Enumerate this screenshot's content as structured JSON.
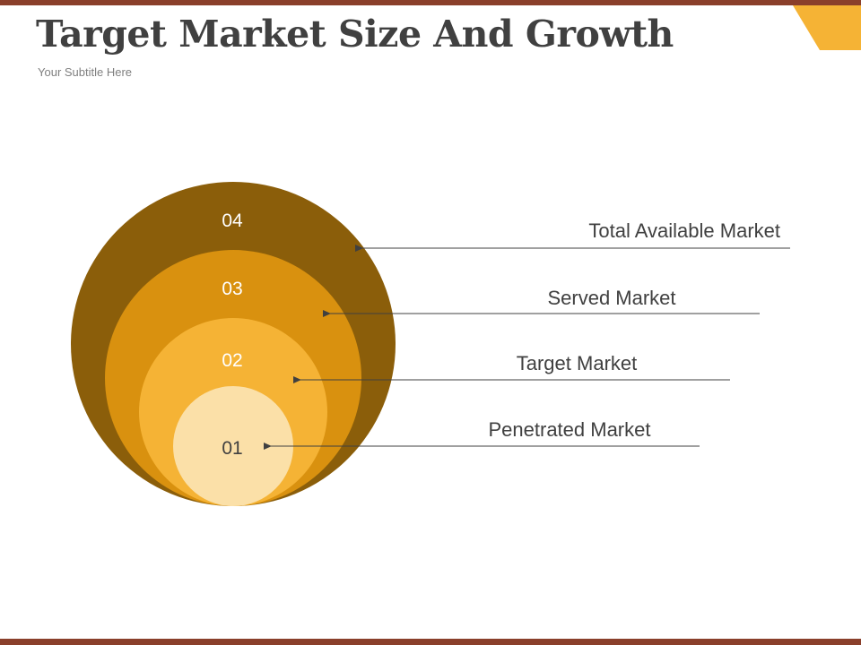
{
  "header": {
    "title": "Target Market Size And Growth",
    "subtitle": "Your Subtitle Here"
  },
  "colors": {
    "border": "#8a3f2b",
    "accent": "#f5b335",
    "ring4": "#8b5e0a",
    "ring3": "#d9910f",
    "ring2": "#f5b335",
    "ring1": "#fbe0a8",
    "text": "#404040",
    "line": "#404040"
  },
  "rings": [
    {
      "number": "04",
      "label": "Total Available Market"
    },
    {
      "number": "03",
      "label": "Served Market"
    },
    {
      "number": "02",
      "label": "Target Market"
    },
    {
      "number": "01",
      "label": "Penetrated Market"
    }
  ]
}
